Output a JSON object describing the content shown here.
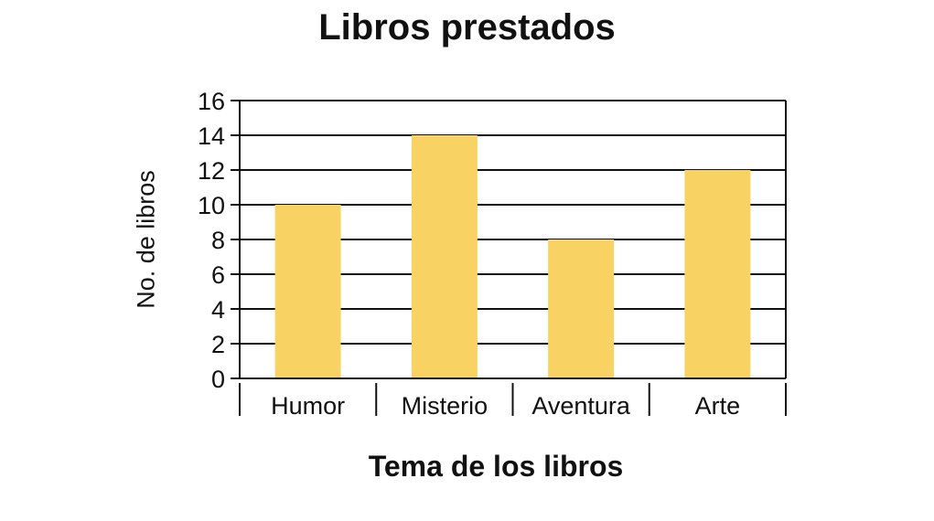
{
  "chart_data": {
    "type": "bar",
    "title": "Libros prestados",
    "xlabel": "Tema de los libros",
    "ylabel": "No. de libros",
    "categories": [
      "Humor",
      "Misterio",
      "Aventura",
      "Arte"
    ],
    "values": [
      10,
      14,
      8,
      12
    ],
    "ylim": [
      0,
      16
    ],
    "yticks": [
      0,
      2,
      4,
      6,
      8,
      10,
      12,
      14,
      16
    ],
    "grid": true,
    "bar_color": "#f9d264",
    "axis_color": "#111111"
  }
}
